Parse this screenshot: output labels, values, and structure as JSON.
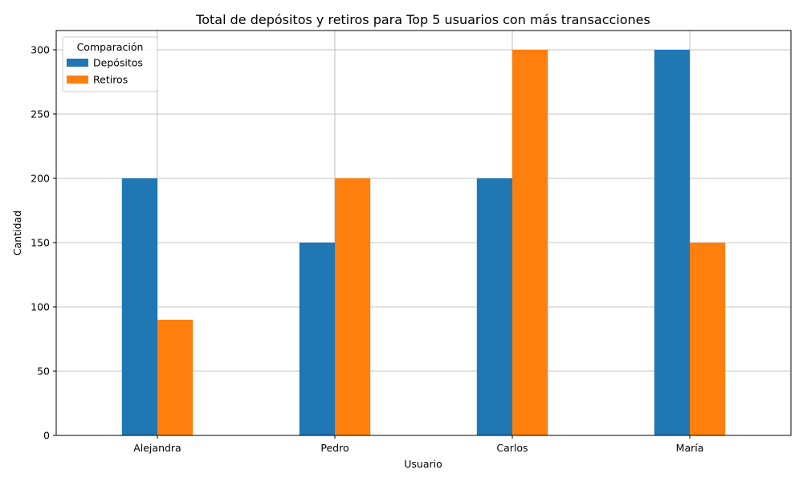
{
  "chart_data": {
    "type": "bar",
    "title": "Total de depósitos y retiros para Top 5 usuarios con más transacciones",
    "xlabel": "Usuario",
    "ylabel": "Cantidad",
    "categories": [
      "Alejandra",
      "Pedro",
      "Carlos",
      "María"
    ],
    "series": [
      {
        "name": "Depósitos",
        "values": [
          200,
          150,
          200,
          300
        ],
        "color": "#1f77b4"
      },
      {
        "name": "Retiros",
        "values": [
          90,
          200,
          300,
          150
        ],
        "color": "#ff7f0e"
      }
    ],
    "ylim": [
      0,
      315
    ],
    "yticks": [
      0,
      50,
      100,
      150,
      200,
      250,
      300
    ],
    "grid": true,
    "legend": {
      "title": "Comparación",
      "placement": "top-left"
    }
  }
}
